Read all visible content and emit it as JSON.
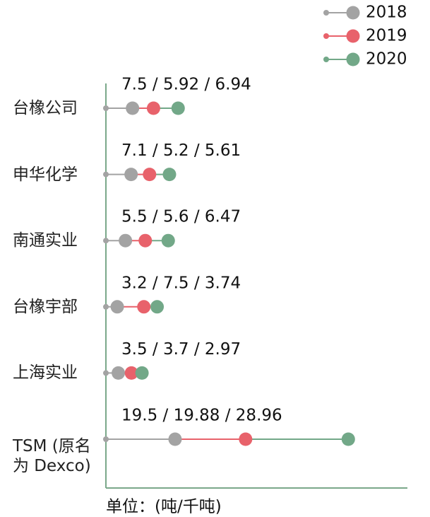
{
  "chart_data": {
    "type": "stacked_dot",
    "categories": [
      "台橡公司",
      "申华化学",
      "南通实业",
      "台橡宇部",
      "上海实业",
      "TSM (原名为 Dexco)"
    ],
    "series": [
      {
        "name": "2018",
        "color": "#a3a3a3",
        "values": [
          7.5,
          7.1,
          5.5,
          3.2,
          3.5,
          19.5
        ]
      },
      {
        "name": "2019",
        "color": "#e8626b",
        "values": [
          5.92,
          5.2,
          5.6,
          7.5,
          3.7,
          19.88
        ]
      },
      {
        "name": "2020",
        "color": "#72a888",
        "values": [
          6.94,
          5.61,
          6.47,
          3.74,
          2.97,
          28.96
        ]
      }
    ],
    "value_labels": [
      "7.5 / 5.92 / 6.94",
      "7.1 / 5.2 / 5.61",
      "5.5 / 5.6 / 6.47",
      "3.2 / 7.5 / 3.74",
      "3.5 / 3.7 / 2.97",
      "19.5 / 19.88 / 28.96"
    ],
    "xlabel": "单位：(吨/千吨)",
    "xlim": [
      0,
      85
    ],
    "legend": "top-right"
  }
}
